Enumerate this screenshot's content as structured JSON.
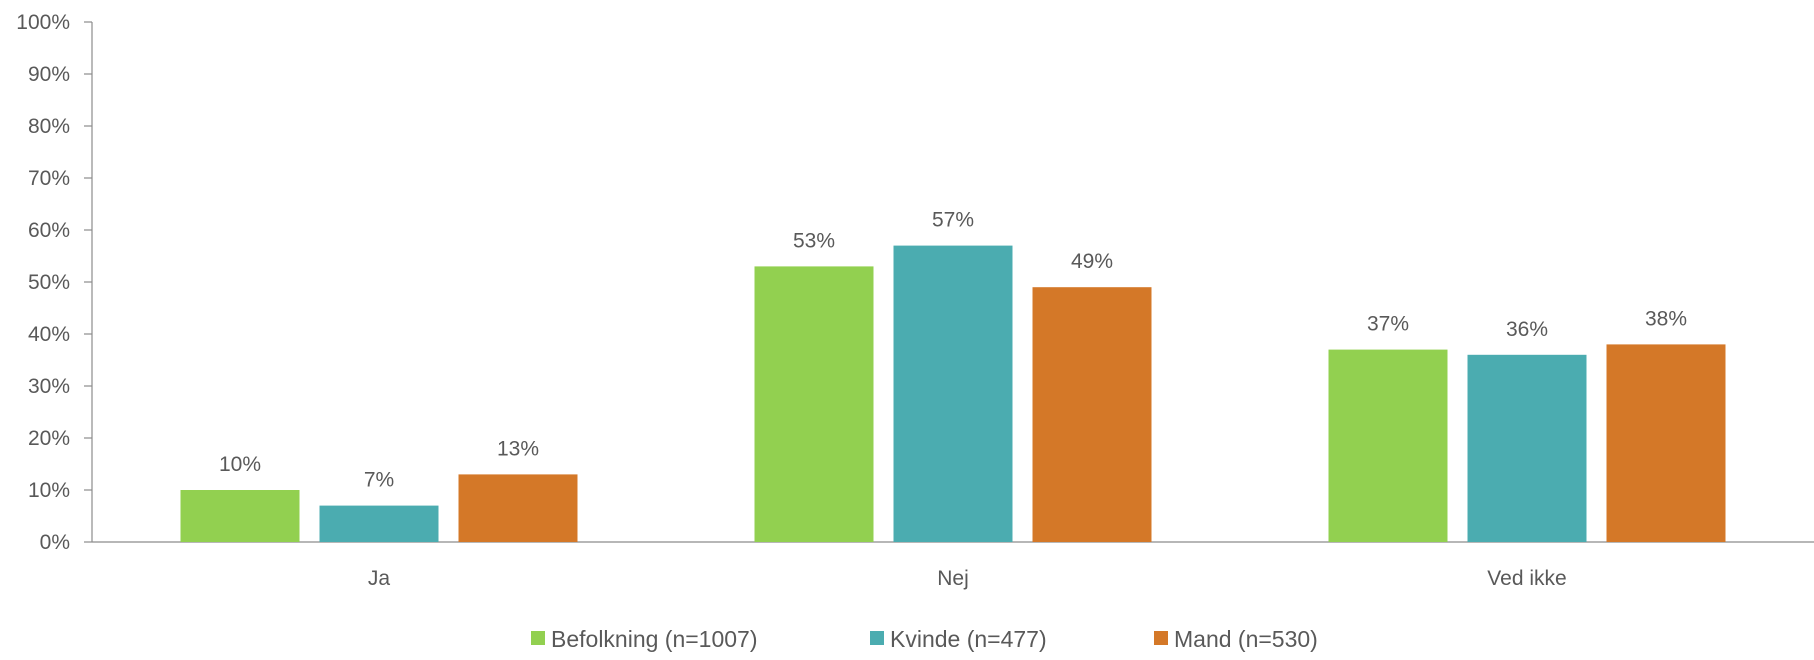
{
  "chart_data": {
    "type": "bar",
    "categories": [
      "Ja",
      "Nej",
      "Ved ikke"
    ],
    "series": [
      {
        "name": "Befolkning (n=1007)",
        "values": [
          10,
          53,
          37
        ],
        "color": "#92d050"
      },
      {
        "name": "Kvinde (n=477)",
        "values": [
          7,
          57,
          36
        ],
        "color": "#4bacb0"
      },
      {
        "name": "Mand (n=530)",
        "values": [
          13,
          49,
          38
        ],
        "color": "#d47828"
      }
    ],
    "value_suffix": "%",
    "yticks": [
      "0%",
      "10%",
      "20%",
      "30%",
      "40%",
      "50%",
      "60%",
      "70%",
      "80%",
      "90%",
      "100%"
    ],
    "ylim": [
      0,
      100
    ],
    "grid": false,
    "legend_position": "bottom"
  }
}
